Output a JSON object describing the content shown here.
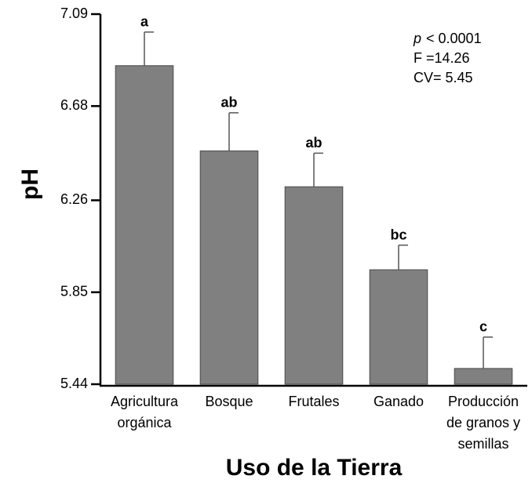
{
  "chart_data": {
    "type": "bar",
    "y_label": "pH",
    "x_label": "Uso de la Tierra",
    "categories": [
      [
        "Agricultura",
        "orgánica"
      ],
      [
        "Bosque"
      ],
      [
        "Frutales"
      ],
      [
        "Ganado"
      ],
      [
        "Producción",
        "de granos y",
        "semillas"
      ]
    ],
    "values": [
      6.86,
      6.48,
      6.32,
      5.95,
      5.51
    ],
    "errors": [
      0.15,
      0.17,
      0.15,
      0.11,
      0.14
    ],
    "group_letters": [
      "a",
      "ab",
      "ab",
      "bc",
      "c"
    ],
    "annotations": [
      {
        "italic": "p",
        "text": "< 0.0001"
      },
      {
        "text": "F =14.26"
      },
      {
        "text": "CV= 5.45"
      }
    ],
    "color": "#808080",
    "ylim": [
      5.44,
      7.09
    ],
    "yticks": [
      5.44,
      5.85,
      6.26,
      6.68,
      7.09
    ],
    "grid": false
  }
}
